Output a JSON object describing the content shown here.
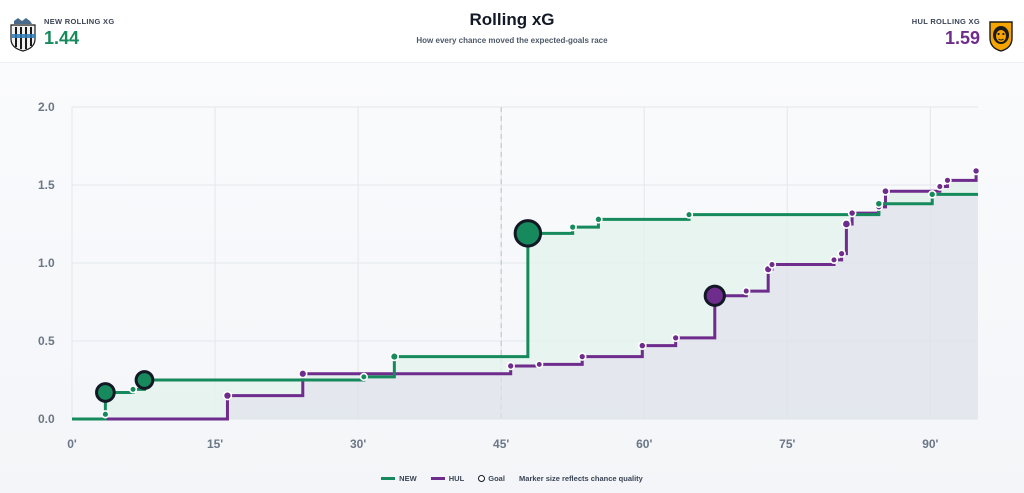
{
  "header": {
    "home": {
      "label": "NEW ROLLING XG",
      "value": "1.44",
      "crest_icon": "newcastle-crest-icon"
    },
    "away": {
      "label": "HUL ROLLING XG",
      "value": "1.59",
      "crest_icon": "hull-crest-icon"
    },
    "title": "Rolling xG",
    "subtitle": "How every chance moved the expected-goals race"
  },
  "colors": {
    "home": "#168a5c",
    "away": "#6e2c8c",
    "grid": "#e3e7ec",
    "halftime": "#b8c0cc"
  },
  "legend": {
    "home": "NEW",
    "away": "HUL",
    "goal": "Goal",
    "note": "Marker size reflects chance quality"
  },
  "chart_data": {
    "type": "line",
    "step": true,
    "xlim": [
      0,
      95
    ],
    "ylim": [
      0,
      2.0
    ],
    "x_ticks": [
      0,
      15,
      30,
      45,
      60,
      75,
      90
    ],
    "x_tick_labels": [
      "0'",
      "15'",
      "30'",
      "45'",
      "60'",
      "75'",
      "90'"
    ],
    "y_ticks": [
      0,
      0.5,
      1.0,
      1.5,
      2.0
    ],
    "y_tick_labels": [
      "0.0",
      "0.5",
      "1.0",
      "1.5",
      "2.0"
    ],
    "halftime_line": 45,
    "grid": true,
    "series": [
      {
        "name": "NEW",
        "final": 95,
        "events": [
          {
            "minute": 3.5,
            "xg": 0.03,
            "goal": false
          },
          {
            "minute": 3.5,
            "xg": 0.17,
            "goal": true
          },
          {
            "minute": 6.4,
            "xg": 0.19,
            "goal": false
          },
          {
            "minute": 7.6,
            "xg": 0.25,
            "goal": true
          },
          {
            "minute": 30.6,
            "xg": 0.27,
            "goal": false
          },
          {
            "minute": 33.8,
            "xg": 0.4,
            "goal": false
          },
          {
            "minute": 47.8,
            "xg": 1.19,
            "goal": true
          },
          {
            "minute": 52.5,
            "xg": 1.23,
            "goal": false
          },
          {
            "minute": 55.2,
            "xg": 1.28,
            "goal": false
          },
          {
            "minute": 64.7,
            "xg": 1.31,
            "goal": false
          },
          {
            "minute": 84.6,
            "xg": 1.38,
            "goal": false
          },
          {
            "minute": 90.2,
            "xg": 1.44,
            "goal": false
          }
        ]
      },
      {
        "name": "HUL",
        "final": 95,
        "events": [
          {
            "minute": 16.3,
            "xg": 0.15,
            "goal": false
          },
          {
            "minute": 24.2,
            "xg": 0.29,
            "goal": false
          },
          {
            "minute": 46.0,
            "xg": 0.34,
            "goal": false
          },
          {
            "minute": 49.0,
            "xg": 0.35,
            "goal": false
          },
          {
            "minute": 53.5,
            "xg": 0.4,
            "goal": false
          },
          {
            "minute": 59.8,
            "xg": 0.47,
            "goal": false
          },
          {
            "minute": 63.3,
            "xg": 0.52,
            "goal": false
          },
          {
            "minute": 67.4,
            "xg": 0.79,
            "goal": true
          },
          {
            "minute": 70.7,
            "xg": 0.82,
            "goal": false
          },
          {
            "minute": 73.0,
            "xg": 0.96,
            "goal": false
          },
          {
            "minute": 73.4,
            "xg": 0.99,
            "goal": false
          },
          {
            "minute": 79.9,
            "xg": 1.02,
            "goal": false
          },
          {
            "minute": 80.7,
            "xg": 1.06,
            "goal": false
          },
          {
            "minute": 81.2,
            "xg": 1.25,
            "goal": false
          },
          {
            "minute": 81.8,
            "xg": 1.32,
            "goal": false
          },
          {
            "minute": 84.6,
            "xg": 1.36,
            "goal": false
          },
          {
            "minute": 85.3,
            "xg": 1.46,
            "goal": false
          },
          {
            "minute": 91.0,
            "xg": 1.49,
            "goal": false
          },
          {
            "minute": 91.8,
            "xg": 1.53,
            "goal": false
          },
          {
            "minute": 94.8,
            "xg": 1.59,
            "goal": false
          }
        ]
      }
    ]
  }
}
